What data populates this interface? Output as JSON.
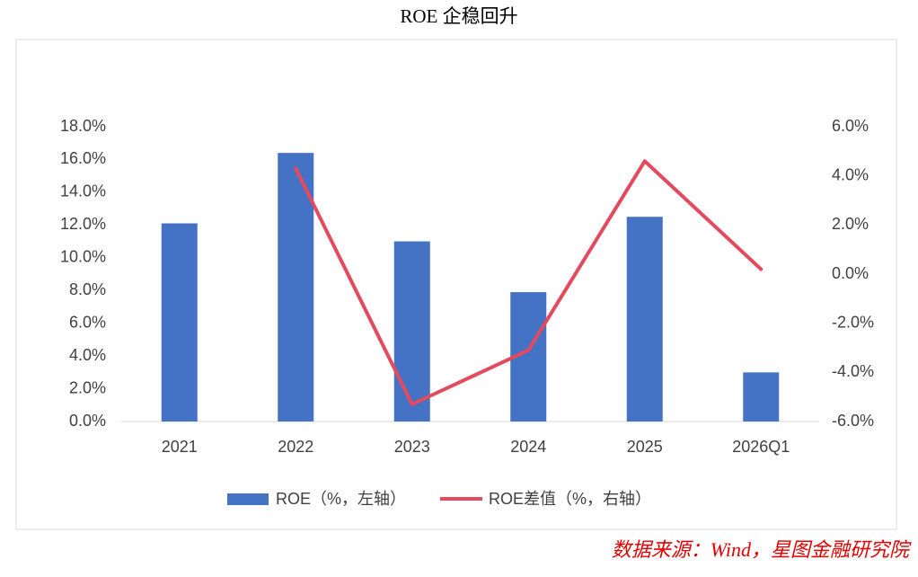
{
  "chart_data": {
    "type": "bar_line",
    "title": "ROE 企稳回升",
    "categories": [
      "2021",
      "2022",
      "2023",
      "2024",
      "2025",
      "2026Q1"
    ],
    "series": [
      {
        "name": "ROE（%，左轴）",
        "type": "bar",
        "color": "#4472c4",
        "values": [
          12.1,
          16.4,
          11.0,
          7.9,
          12.5,
          3.0
        ]
      },
      {
        "name": "ROE差值（%，右轴）",
        "type": "line",
        "axis": "y2",
        "color": "#e34a5e",
        "values": [
          null,
          4.3,
          -5.3,
          -3.1,
          4.6,
          0.2
        ]
      }
    ],
    "ylim": [
      0,
      18
    ],
    "yticks": [
      {
        "value": 0,
        "label": "0.0%"
      },
      {
        "value": 2,
        "label": "2.0%"
      },
      {
        "value": 4,
        "label": "4.0%"
      },
      {
        "value": 6,
        "label": "6.0%"
      },
      {
        "value": 8,
        "label": "8.0%"
      },
      {
        "value": 10,
        "label": "10.0%"
      },
      {
        "value": 12,
        "label": "12.0%"
      },
      {
        "value": 14,
        "label": "14.0%"
      },
      {
        "value": 16,
        "label": "16.0%"
      },
      {
        "value": 18,
        "label": "18.0%"
      }
    ],
    "y2lim": [
      -6,
      6
    ],
    "y2ticks": [
      {
        "value": -6,
        "label": "-6.0%"
      },
      {
        "value": -4,
        "label": "-4.0%"
      },
      {
        "value": -2,
        "label": "-2.0%"
      },
      {
        "value": 0,
        "label": "0.0%"
      },
      {
        "value": 2,
        "label": "2.0%"
      },
      {
        "value": 4,
        "label": "4.0%"
      },
      {
        "value": 6,
        "label": "6.0%"
      }
    ],
    "grid": false,
    "legend": "bottom",
    "source": "数据来源：Wind，星图金融研究院"
  }
}
